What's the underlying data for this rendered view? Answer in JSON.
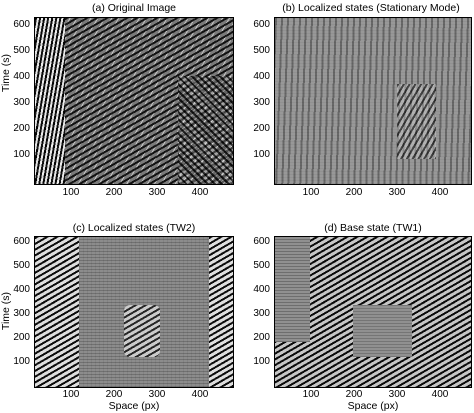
{
  "panels": [
    {
      "title": "(a)  Original Image",
      "xlabel": "",
      "ylabel": "Time (s)"
    },
    {
      "title": "(b)  Localized states (Stationary Mode)",
      "xlabel": "",
      "ylabel": ""
    },
    {
      "title": "(c)  Localized states (TW2)",
      "xlabel": "Space (px)",
      "ylabel": "Time (s)"
    },
    {
      "title": "(d)  Base state (TW1)",
      "xlabel": "Space (px)",
      "ylabel": ""
    }
  ],
  "yticks": [
    "600",
    "500",
    "400",
    "300",
    "200",
    "100"
  ],
  "xticks": [
    "100",
    "200",
    "300",
    "400"
  ]
}
